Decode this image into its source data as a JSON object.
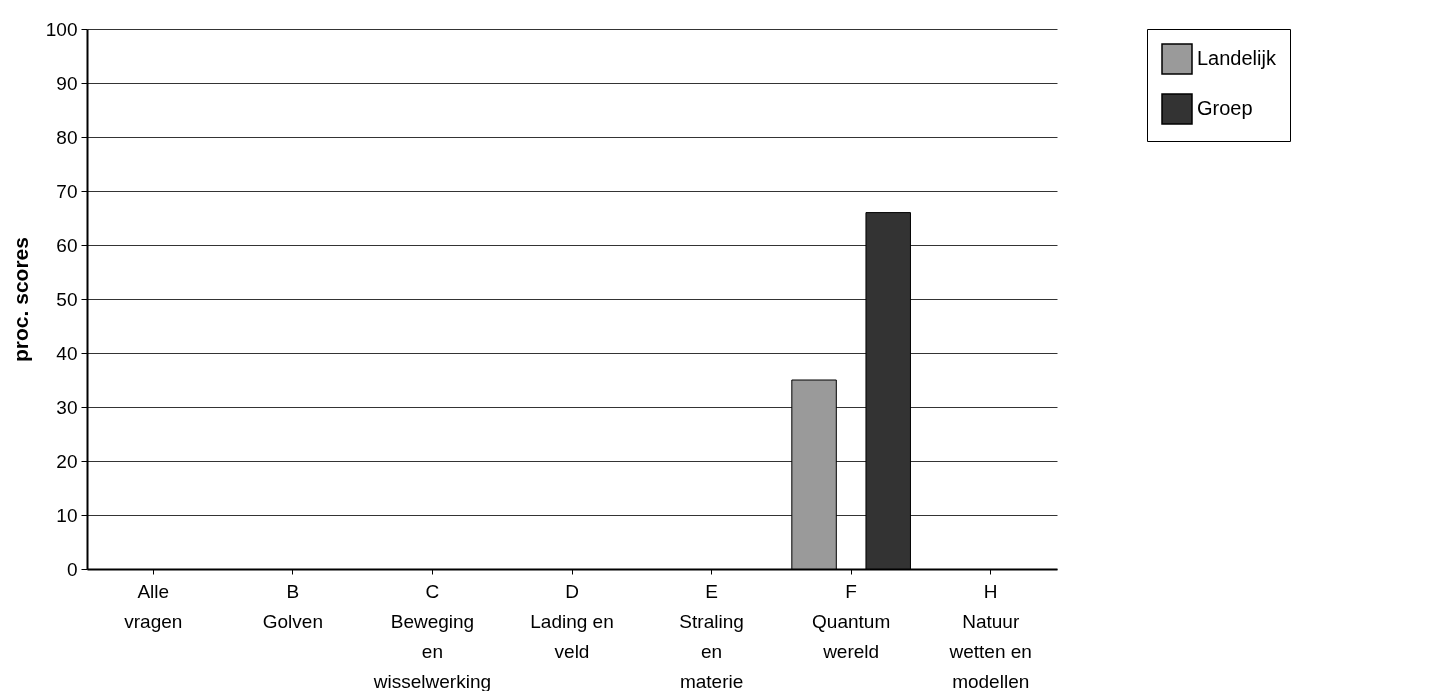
{
  "chart_data": {
    "type": "bar",
    "ylabel": "proc. scores",
    "categories": [
      "Alle\nvragen",
      "B\nGolven",
      "C\nBeweging\nen\nwisselwerking",
      "D\nLading en\nveld",
      "E\nStraling\nen\nmaterie",
      "F\nQuantum\nwereld",
      "H\nNatuur\nwetten en\nmodellen"
    ],
    "series": [
      {
        "name": "Landelijk",
        "color": "#9a9a9a",
        "values": [
          null,
          null,
          null,
          null,
          null,
          35,
          null
        ]
      },
      {
        "name": "Groep",
        "color": "#333333",
        "values": [
          null,
          null,
          null,
          null,
          null,
          66,
          null
        ]
      }
    ],
    "ylim": [
      0,
      100
    ],
    "yticks": [
      0,
      10,
      20,
      30,
      40,
      50,
      60,
      70,
      80,
      90,
      100
    ],
    "grid": "y",
    "legend": "top right"
  }
}
